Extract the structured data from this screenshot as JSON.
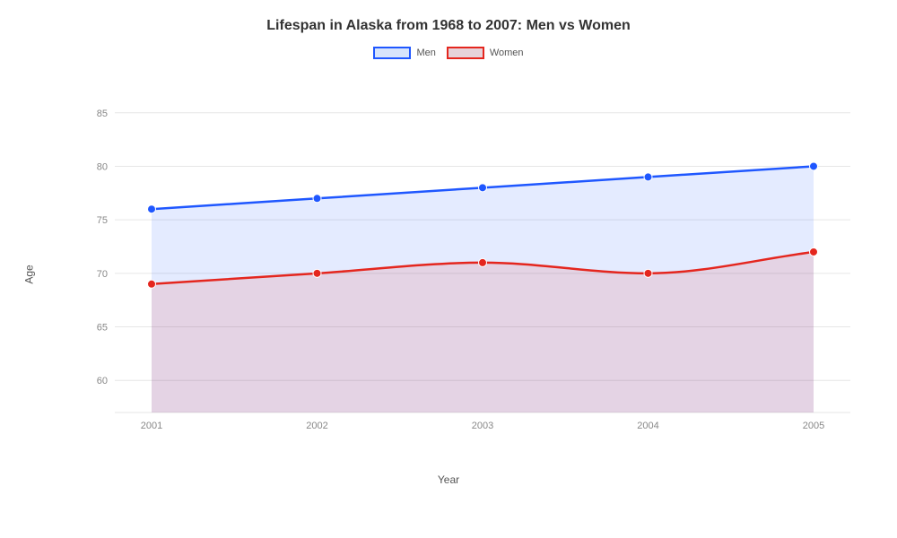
{
  "chart": {
    "type": "area-line",
    "title": "Lifespan in Alaska from 1968 to 2007: Men vs Women",
    "title_fontsize": 16,
    "title_fontweight": 700,
    "title_color": "#333333",
    "background_color": "#ffffff",
    "plot_background_color": "#ffffff",
    "grid_color": "#e6e6e6",
    "tick_label_color": "#888888",
    "tick_label_fontsize": 11,
    "axis_label_color": "#555555",
    "axis_label_fontsize": 12,
    "x": {
      "label": "Year",
      "categories": [
        "2001",
        "2002",
        "2003",
        "2004",
        "2005"
      ]
    },
    "y": {
      "label": "Age",
      "lim": [
        57,
        88
      ],
      "ticks": [
        60,
        65,
        70,
        75,
        80,
        85
      ]
    },
    "legend": {
      "position": "top-center",
      "label_fontsize": 11,
      "items": [
        {
          "label": "Men",
          "stroke": "#1f57ff",
          "fill": "#d7e4fb"
        },
        {
          "label": "Women",
          "stroke": "#e4261e",
          "fill": "#e6d3da"
        }
      ]
    },
    "series": [
      {
        "name": "Men",
        "values": [
          76,
          77,
          78,
          79,
          80
        ],
        "line_color": "#1f57ff",
        "line_width": 2.5,
        "fill_color": "rgba(31,87,255,0.12)",
        "marker": {
          "shape": "circle",
          "size": 4.5,
          "fill": "#1f57ff",
          "stroke": "#ffffff",
          "stroke_width": 1
        }
      },
      {
        "name": "Women",
        "values": [
          69,
          70,
          71,
          70,
          72
        ],
        "line_color": "#e4261e",
        "line_width": 2.5,
        "fill_color": "rgba(228,38,30,0.12)",
        "marker": {
          "shape": "circle",
          "size": 4.5,
          "fill": "#e4261e",
          "stroke": "#ffffff",
          "stroke_width": 1
        }
      }
    ],
    "curve": "monotone"
  }
}
